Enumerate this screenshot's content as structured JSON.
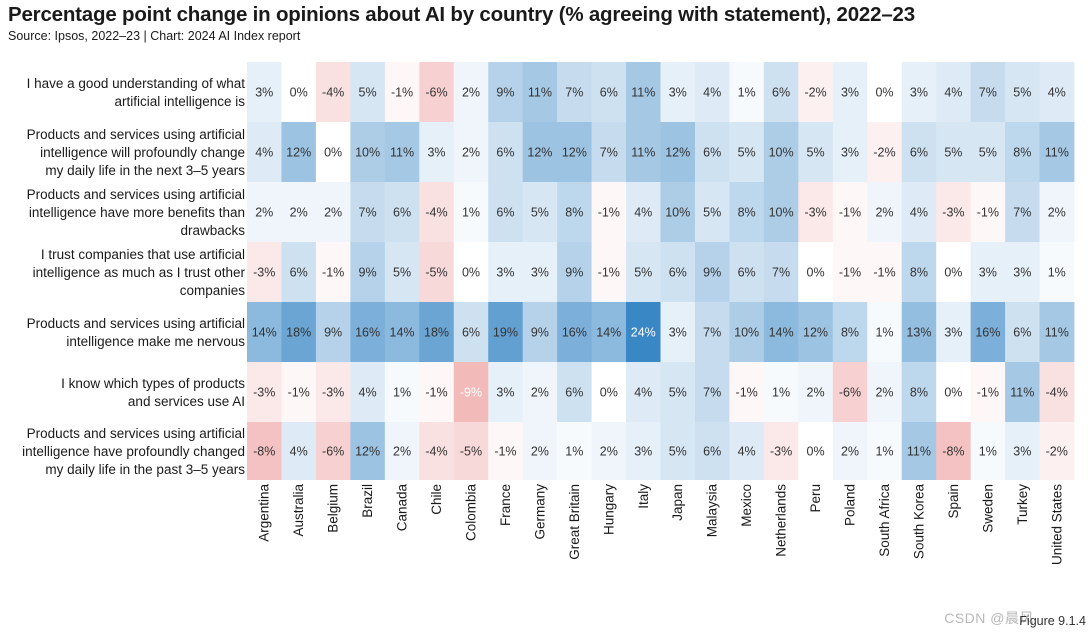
{
  "title": "Percentage point change in opinions about AI by country (% agreeing with statement), 2022–23",
  "subtitle": "Source: Ipsos, 2022–23 | Chart: 2024 AI Index report",
  "figure_label": "Figure 9.1.4",
  "watermark": "CSDN @晨风",
  "colors": {
    "positive": "#3a87c6",
    "negative": "#de4848",
    "neutral": "#ffffff"
  },
  "chart_data": {
    "type": "heatmap",
    "title": "Percentage point change in opinions about AI by country (% agreeing with statement), 2022–23",
    "value_suffix": "%",
    "color_range": [
      -24,
      24
    ],
    "columns": [
      "Argentina",
      "Australia",
      "Belgium",
      "Brazil",
      "Canada",
      "Chile",
      "Colombia",
      "France",
      "Germany",
      "Great Britain",
      "Hungary",
      "Italy",
      "Japan",
      "Malaysia",
      "Mexico",
      "Netherlands",
      "Peru",
      "Poland",
      "South Africa",
      "South Korea",
      "Spain",
      "Sweden",
      "Turkey",
      "United States"
    ],
    "rows": [
      {
        "label_lines": [
          "I have a good understanding of what",
          "artificial intelligence is"
        ],
        "values": [
          3,
          0,
          -4,
          5,
          -1,
          -6,
          2,
          9,
          11,
          7,
          6,
          11,
          3,
          4,
          1,
          6,
          -2,
          3,
          0,
          3,
          4,
          7,
          5,
          4
        ]
      },
      {
        "label_lines": [
          "Products and services using artificial",
          "intelligence will profoundly change",
          "my daily life in the next 3–5 years"
        ],
        "values": [
          4,
          12,
          0,
          10,
          11,
          3,
          2,
          6,
          12,
          12,
          7,
          11,
          12,
          6,
          5,
          10,
          5,
          3,
          -2,
          6,
          5,
          5,
          8,
          11
        ]
      },
      {
        "label_lines": [
          "Products and services using artificial",
          "intelligence have more benefits than",
          "drawbacks"
        ],
        "values": [
          2,
          2,
          2,
          7,
          6,
          -4,
          1,
          6,
          5,
          8,
          -1,
          4,
          10,
          5,
          8,
          10,
          -3,
          -1,
          2,
          4,
          -3,
          -1,
          7,
          2
        ]
      },
      {
        "label_lines": [
          "I trust companies that use artificial",
          "intelligence as much as I trust other",
          "companies"
        ],
        "values": [
          -3,
          6,
          -1,
          9,
          5,
          -5,
          0,
          3,
          3,
          9,
          -1,
          5,
          6,
          9,
          6,
          7,
          0,
          -1,
          -1,
          8,
          0,
          3,
          3,
          1
        ]
      },
      {
        "label_lines": [
          "Products and services using artificial",
          "intelligence make me nervous"
        ],
        "values": [
          14,
          18,
          9,
          16,
          14,
          18,
          6,
          19,
          9,
          16,
          14,
          24,
          3,
          7,
          10,
          14,
          12,
          8,
          1,
          13,
          3,
          16,
          6,
          11
        ]
      },
      {
        "label_lines": [
          "I know which types of products",
          "and services use AI"
        ],
        "values": [
          -3,
          -1,
          -3,
          4,
          1,
          -1,
          -9,
          3,
          2,
          6,
          0,
          4,
          5,
          7,
          -1,
          1,
          2,
          -6,
          2,
          8,
          0,
          -1,
          11,
          -4
        ]
      },
      {
        "label_lines": [
          "Products and services using artificial",
          "intelligence have profoundly changed",
          "my daily life in the past 3–5 years"
        ],
        "values": [
          -8,
          4,
          -6,
          12,
          2,
          -4,
          -5,
          -1,
          2,
          1,
          2,
          3,
          5,
          6,
          4,
          -3,
          0,
          2,
          1,
          11,
          -8,
          1,
          3,
          -2
        ]
      }
    ]
  }
}
